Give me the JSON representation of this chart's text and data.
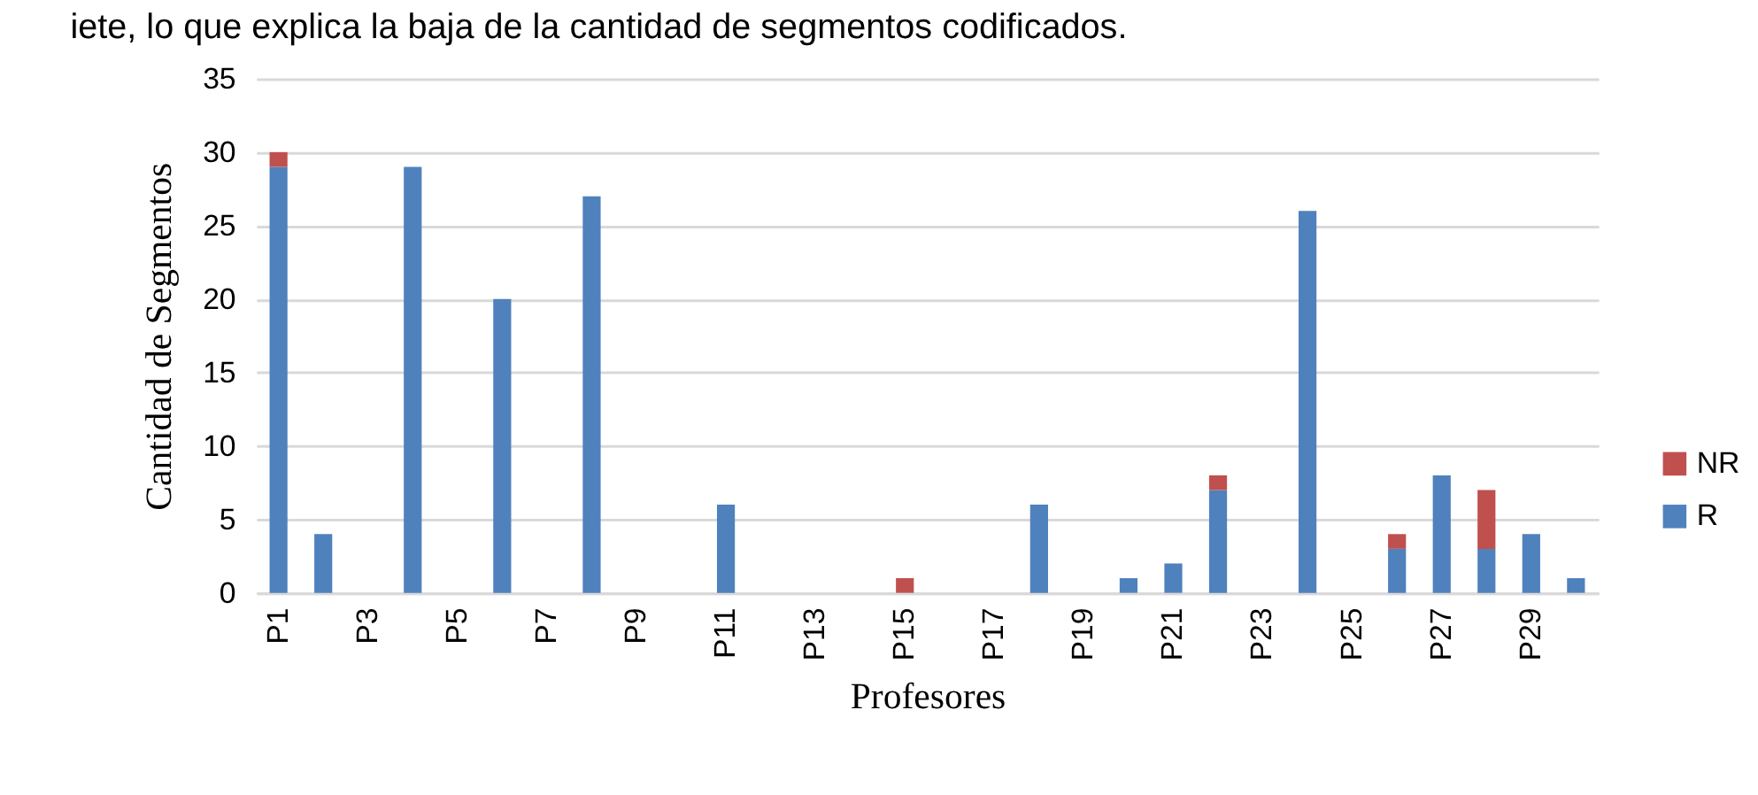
{
  "chart_data": {
    "type": "bar",
    "stacked": true,
    "annotations": [
      "iete, lo que explica la baja de la cantidad de segmentos codificados."
    ],
    "xlabel": "Profesores",
    "ylabel": "Cantidad de Segmentos",
    "categories": [
      "P1",
      null,
      "P3",
      null,
      "P5",
      null,
      "P7",
      null,
      "P9",
      null,
      "P11",
      null,
      "P13",
      null,
      "P15",
      null,
      "P17",
      null,
      "P19",
      null,
      "P21",
      null,
      "P23",
      null,
      "P25",
      null,
      "P27",
      null,
      "P29",
      null
    ],
    "series": [
      {
        "name": "R",
        "color": "#4f81bd",
        "values": [
          29,
          4,
          0,
          29,
          0,
          20,
          0,
          27,
          0,
          0,
          6,
          0,
          0,
          0,
          0,
          0,
          0,
          6,
          0,
          1,
          2,
          7,
          0,
          26,
          0,
          3,
          8,
          3,
          4,
          1
        ]
      },
      {
        "name": "NR",
        "color": "#c0504d",
        "values": [
          1,
          0,
          0,
          0,
          0,
          0,
          0,
          0,
          0,
          0,
          0,
          0,
          0,
          0,
          1,
          0,
          0,
          0,
          0,
          0,
          0,
          1,
          0,
          0,
          0,
          1,
          0,
          4,
          0,
          0
        ]
      }
    ],
    "ylim": [
      0,
      35
    ],
    "yticks": [
      0,
      5,
      10,
      15,
      20,
      25,
      30,
      35
    ],
    "grid": "y",
    "legend": "right"
  }
}
